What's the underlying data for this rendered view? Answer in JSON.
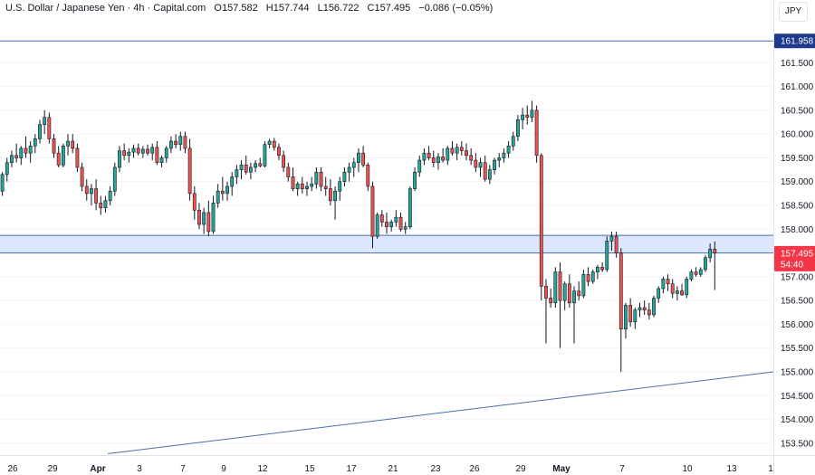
{
  "header": {
    "symbol": "U.S. Dollar / Japanese Yen · 4h · Capital.com",
    "open": "O157.582",
    "high": "H157.744",
    "low": "L156.722",
    "close": "C157.495",
    "change": "−0.086 (−0.05%)"
  },
  "currency": "JPY",
  "colors": {
    "up": "#26a69a",
    "down": "#ef5350",
    "line": "#4a6fa5",
    "zone": "#dde7fb",
    "last_price": "#f23645",
    "label_blue": "#1e3a8a"
  },
  "chart_data": {
    "type": "candlestick",
    "ylim": [
      153.25,
      162.4
    ],
    "x_labels": [
      {
        "label": "26",
        "bold": false
      },
      {
        "label": "29",
        "bold": false
      },
      {
        "label": "Apr",
        "bold": true
      },
      {
        "label": "3",
        "bold": false
      },
      {
        "label": "7",
        "bold": false
      },
      {
        "label": "9",
        "bold": false
      },
      {
        "label": "12",
        "bold": false
      },
      {
        "label": "15",
        "bold": false
      },
      {
        "label": "17",
        "bold": false
      },
      {
        "label": "21",
        "bold": false
      },
      {
        "label": "23",
        "bold": false
      },
      {
        "label": "26",
        "bold": false
      },
      {
        "label": "29",
        "bold": false
      },
      {
        "label": "May",
        "bold": true
      },
      {
        "label": "7",
        "bold": false
      },
      {
        "label": "10",
        "bold": false
      },
      {
        "label": "13",
        "bold": false
      },
      {
        "label": "1",
        "bold": false
      }
    ],
    "y_ticks": [
      "153.500",
      "154.000",
      "154.500",
      "155.000",
      "155.500",
      "156.000",
      "156.500",
      "157.000",
      "157.500",
      "158.000",
      "158.500",
      "159.000",
      "159.500",
      "160.000",
      "160.500",
      "161.000",
      "161.500"
    ],
    "y_tick_values": [
      153.5,
      154.0,
      154.5,
      155.0,
      155.5,
      156.0,
      156.5,
      157.0,
      157.5,
      158.0,
      158.5,
      159.0,
      159.5,
      160.0,
      160.5,
      161.0,
      161.5
    ],
    "resistance_line": {
      "value": 161.958,
      "label": "161.958"
    },
    "zone": {
      "low": 157.5,
      "high": 157.87
    },
    "trendline": {
      "start": [
        23,
        153.28
      ],
      "end": [
        165,
        155.0
      ]
    },
    "last_price": {
      "value": 157.495,
      "label": "157.495",
      "countdown": "54:40"
    },
    "candles": [
      [
        158.8,
        159.2,
        158.7,
        159.15
      ],
      [
        159.15,
        159.5,
        159.0,
        159.4
      ],
      [
        159.4,
        159.65,
        159.3,
        159.55
      ],
      [
        159.55,
        159.8,
        159.4,
        159.5
      ],
      [
        159.5,
        159.75,
        159.35,
        159.7
      ],
      [
        159.7,
        159.95,
        159.5,
        159.6
      ],
      [
        159.6,
        159.85,
        159.4,
        159.75
      ],
      [
        159.75,
        160.0,
        159.6,
        159.9
      ],
      [
        159.9,
        160.3,
        159.8,
        160.2
      ],
      [
        160.2,
        160.5,
        160.0,
        160.35
      ],
      [
        160.35,
        160.45,
        159.8,
        159.9
      ],
      [
        159.9,
        160.0,
        159.5,
        159.6
      ],
      [
        159.6,
        159.75,
        159.3,
        159.35
      ],
      [
        159.35,
        159.8,
        159.3,
        159.75
      ],
      [
        159.75,
        160.0,
        159.55,
        159.85
      ],
      [
        159.85,
        160.0,
        159.6,
        159.7
      ],
      [
        159.7,
        159.8,
        159.2,
        159.3
      ],
      [
        159.3,
        159.4,
        158.8,
        158.9
      ],
      [
        158.9,
        159.05,
        158.6,
        158.75
      ],
      [
        158.75,
        158.95,
        158.5,
        158.85
      ],
      [
        158.85,
        159.05,
        158.4,
        158.55
      ],
      [
        158.55,
        158.7,
        158.3,
        158.45
      ],
      [
        158.45,
        158.7,
        158.35,
        158.6
      ],
      [
        158.6,
        158.9,
        158.5,
        158.8
      ],
      [
        158.8,
        159.4,
        158.7,
        159.3
      ],
      [
        159.3,
        159.75,
        159.2,
        159.65
      ],
      [
        159.65,
        159.8,
        159.45,
        159.55
      ],
      [
        159.55,
        159.7,
        159.4,
        159.62
      ],
      [
        159.62,
        159.78,
        159.5,
        159.7
      ],
      [
        159.7,
        159.8,
        159.55,
        159.6
      ],
      [
        159.6,
        159.75,
        159.5,
        159.68
      ],
      [
        159.68,
        159.78,
        159.55,
        159.6
      ],
      [
        159.6,
        159.8,
        159.45,
        159.72
      ],
      [
        159.72,
        159.85,
        159.35,
        159.4
      ],
      [
        159.4,
        159.55,
        159.3,
        159.5
      ],
      [
        159.5,
        159.75,
        159.4,
        159.7
      ],
      [
        159.7,
        159.95,
        159.6,
        159.85
      ],
      [
        159.85,
        160.0,
        159.7,
        159.78
      ],
      [
        159.78,
        160.05,
        159.65,
        159.95
      ],
      [
        159.95,
        160.05,
        159.6,
        159.7
      ],
      [
        159.7,
        159.9,
        158.6,
        158.75
      ],
      [
        158.75,
        158.9,
        158.2,
        158.4
      ],
      [
        158.4,
        158.55,
        158.0,
        158.1
      ],
      [
        158.1,
        158.45,
        157.9,
        158.35
      ],
      [
        158.35,
        158.6,
        157.85,
        157.95
      ],
      [
        157.95,
        158.7,
        157.9,
        158.55
      ],
      [
        158.55,
        158.95,
        158.45,
        158.8
      ],
      [
        158.8,
        159.1,
        158.6,
        158.75
      ],
      [
        158.75,
        159.0,
        158.6,
        158.9
      ],
      [
        158.9,
        159.2,
        158.7,
        159.1
      ],
      [
        159.1,
        159.35,
        158.95,
        159.25
      ],
      [
        159.25,
        159.45,
        159.05,
        159.35
      ],
      [
        159.35,
        159.55,
        159.15,
        159.2
      ],
      [
        159.2,
        159.4,
        159.05,
        159.3
      ],
      [
        159.3,
        159.45,
        159.2,
        159.38
      ],
      [
        159.38,
        159.5,
        159.3,
        159.33
      ],
      [
        159.33,
        159.85,
        159.3,
        159.78
      ],
      [
        159.78,
        159.9,
        159.7,
        159.85
      ],
      [
        159.85,
        159.92,
        159.65,
        159.72
      ],
      [
        159.72,
        159.8,
        159.45,
        159.55
      ],
      [
        159.55,
        159.65,
        159.2,
        159.3
      ],
      [
        159.3,
        159.4,
        159.0,
        159.1
      ],
      [
        159.1,
        159.3,
        158.8,
        158.85
      ],
      [
        158.85,
        159.0,
        158.7,
        158.95
      ],
      [
        158.95,
        159.1,
        158.75,
        158.85
      ],
      [
        158.85,
        159.0,
        158.7,
        158.9
      ],
      [
        158.9,
        159.1,
        158.8,
        158.95
      ],
      [
        158.95,
        159.3,
        158.85,
        159.2
      ],
      [
        159.2,
        159.3,
        158.8,
        158.9
      ],
      [
        158.9,
        159.1,
        158.7,
        158.85
      ],
      [
        158.85,
        159.05,
        158.5,
        158.6
      ],
      [
        158.6,
        158.9,
        158.2,
        158.8
      ],
      [
        158.8,
        159.1,
        158.6,
        159.0
      ],
      [
        159.0,
        159.3,
        158.9,
        159.2
      ],
      [
        159.2,
        159.4,
        159.0,
        159.3
      ],
      [
        159.3,
        159.5,
        159.1,
        159.4
      ],
      [
        159.4,
        159.7,
        159.2,
        159.6
      ],
      [
        159.6,
        159.75,
        159.3,
        159.35
      ],
      [
        159.35,
        159.4,
        158.8,
        158.9
      ],
      [
        158.9,
        159.0,
        157.6,
        157.85
      ],
      [
        157.85,
        158.35,
        157.8,
        158.3
      ],
      [
        158.3,
        158.4,
        158.05,
        158.15
      ],
      [
        158.15,
        158.35,
        157.9,
        158.05
      ],
      [
        158.05,
        158.2,
        157.95,
        158.15
      ],
      [
        158.15,
        158.4,
        158.05,
        158.25
      ],
      [
        158.25,
        158.35,
        157.95,
        158.0
      ],
      [
        158.0,
        158.15,
        157.9,
        158.05
      ],
      [
        158.05,
        158.9,
        158.0,
        158.85
      ],
      [
        158.85,
        159.3,
        158.8,
        159.2
      ],
      [
        159.2,
        159.55,
        159.1,
        159.45
      ],
      [
        159.45,
        159.7,
        159.35,
        159.6
      ],
      [
        159.6,
        159.75,
        159.45,
        159.5
      ],
      [
        159.5,
        159.65,
        159.3,
        159.4
      ],
      [
        159.4,
        159.6,
        159.25,
        159.52
      ],
      [
        159.52,
        159.7,
        159.4,
        159.45
      ],
      [
        159.45,
        159.75,
        159.35,
        159.7
      ],
      [
        159.7,
        159.85,
        159.55,
        159.6
      ],
      [
        159.6,
        159.8,
        159.45,
        159.72
      ],
      [
        159.72,
        159.85,
        159.55,
        159.65
      ],
      [
        159.65,
        159.8,
        159.45,
        159.55
      ],
      [
        159.55,
        159.7,
        159.35,
        159.45
      ],
      [
        159.45,
        159.6,
        159.2,
        159.3
      ],
      [
        159.3,
        159.5,
        159.1,
        159.4
      ],
      [
        159.4,
        159.55,
        159.0,
        159.05
      ],
      [
        159.05,
        159.35,
        158.95,
        159.25
      ],
      [
        159.25,
        159.5,
        159.15,
        159.45
      ],
      [
        159.45,
        159.6,
        159.3,
        159.5
      ],
      [
        159.5,
        159.7,
        159.4,
        159.6
      ],
      [
        159.6,
        159.85,
        159.5,
        159.75
      ],
      [
        159.75,
        160.05,
        159.65,
        159.95
      ],
      [
        159.95,
        160.4,
        159.85,
        160.3
      ],
      [
        160.3,
        160.55,
        160.1,
        160.4
      ],
      [
        160.4,
        160.6,
        160.2,
        160.35
      ],
      [
        160.35,
        160.7,
        160.25,
        160.5
      ],
      [
        160.5,
        160.6,
        159.4,
        159.55
      ],
      [
        159.55,
        159.6,
        156.5,
        156.8
      ],
      [
        156.8,
        156.95,
        155.6,
        156.55
      ],
      [
        156.55,
        156.75,
        156.35,
        156.45
      ],
      [
        156.45,
        157.2,
        156.35,
        157.1
      ],
      [
        157.1,
        157.3,
        155.5,
        156.5
      ],
      [
        156.5,
        156.9,
        156.3,
        156.85
      ],
      [
        156.85,
        157.05,
        156.35,
        156.45
      ],
      [
        156.45,
        156.8,
        155.6,
        156.7
      ],
      [
        156.7,
        156.9,
        156.5,
        156.6
      ],
      [
        156.6,
        157.15,
        156.55,
        157.05
      ],
      [
        157.05,
        157.2,
        156.8,
        156.9
      ],
      [
        156.9,
        157.15,
        156.85,
        157.1
      ],
      [
        157.1,
        157.25,
        156.95,
        157.2
      ],
      [
        157.2,
        157.3,
        157.1,
        157.15
      ],
      [
        157.15,
        157.85,
        157.1,
        157.75
      ],
      [
        157.75,
        157.95,
        157.55,
        157.85
      ],
      [
        157.85,
        157.95,
        157.4,
        157.5
      ],
      [
        157.5,
        157.6,
        155.0,
        155.9
      ],
      [
        155.9,
        156.45,
        155.7,
        156.4
      ],
      [
        156.4,
        156.55,
        155.95,
        156.05
      ],
      [
        156.05,
        156.35,
        155.9,
        156.3
      ],
      [
        156.3,
        156.45,
        156.15,
        156.35
      ],
      [
        156.35,
        156.5,
        156.2,
        156.3
      ],
      [
        156.3,
        156.45,
        156.1,
        156.2
      ],
      [
        156.2,
        156.6,
        156.15,
        156.55
      ],
      [
        156.55,
        156.8,
        156.45,
        156.75
      ],
      [
        156.75,
        157.0,
        156.65,
        156.95
      ],
      [
        156.95,
        157.05,
        156.7,
        156.85
      ],
      [
        156.85,
        156.95,
        156.55,
        156.65
      ],
      [
        156.65,
        156.8,
        156.5,
        156.7
      ],
      [
        156.7,
        156.85,
        156.6,
        156.62
      ],
      [
        156.62,
        157.0,
        156.55,
        156.95
      ],
      [
        156.95,
        157.15,
        156.9,
        157.1
      ],
      [
        157.1,
        157.2,
        157.0,
        157.05
      ],
      [
        157.05,
        157.2,
        157.0,
        157.15
      ],
      [
        157.15,
        157.45,
        157.1,
        157.4
      ],
      [
        157.4,
        157.7,
        157.3,
        157.58
      ],
      [
        157.58,
        157.74,
        156.72,
        157.5
      ]
    ]
  }
}
